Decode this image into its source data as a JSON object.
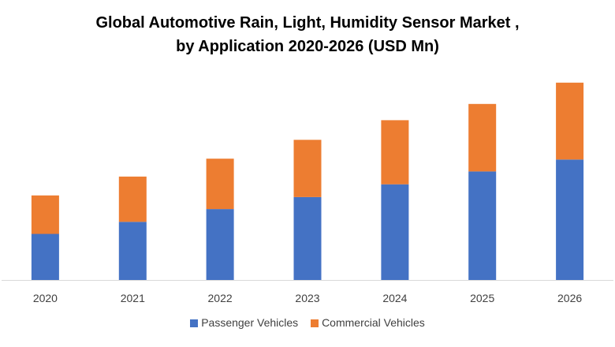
{
  "chart_data": {
    "type": "bar",
    "stacked": true,
    "title_line1": "Global Automotive Rain, Light, Humidity Sensor Market ,",
    "title_line2": "by Application 2020-2026 (USD Mn)",
    "categories": [
      "2020",
      "2021",
      "2022",
      "2023",
      "2024",
      "2025",
      "2026"
    ],
    "series": [
      {
        "name": "Passenger Vehicles",
        "color": "#4472C4",
        "values": [
          54,
          68,
          83,
          97,
          112,
          127,
          141
        ]
      },
      {
        "name": "Commercial Vehicles",
        "color": "#ED7D31",
        "values": [
          45,
          53,
          59,
          67,
          75,
          79,
          90
        ]
      }
    ],
    "xlabel": "",
    "ylabel": "",
    "ylim": [
      0,
      240
    ],
    "legend_position": "bottom",
    "grid": false
  }
}
